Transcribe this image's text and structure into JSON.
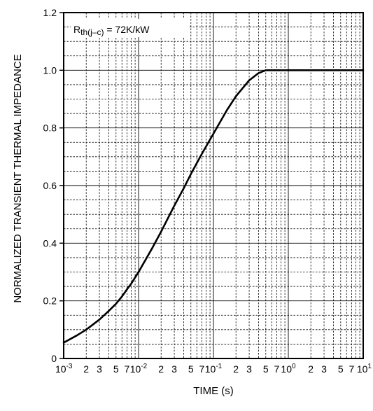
{
  "chart_data": {
    "type": "line",
    "title": "",
    "xlabel": "TIME (s)",
    "ylabel": "NORMALIZED TRANSIENT THERMAL IMPEDANCE",
    "x_scale": "log",
    "xlim": [
      0.001,
      10
    ],
    "ylim": [
      0,
      1.2
    ],
    "grid": true,
    "annotation": {
      "main": "R",
      "sub": "th(j–c)",
      "rest": " = 72K/kW"
    },
    "y_ticks": [
      {
        "value": 0,
        "label": "0"
      },
      {
        "value": 0.2,
        "label": "0.2"
      },
      {
        "value": 0.4,
        "label": "0.4"
      },
      {
        "value": 0.6,
        "label": "0.6"
      },
      {
        "value": 0.8,
        "label": "0.8"
      },
      {
        "value": 1.0,
        "label": "1.0"
      },
      {
        "value": 1.2,
        "label": "1.2"
      }
    ],
    "x_decade_labels": [
      {
        "value": 0.001,
        "base": "10",
        "exp": "-3"
      },
      {
        "value": 0.01,
        "base": "10",
        "exp": "-2"
      },
      {
        "value": 0.1,
        "base": "10",
        "exp": "-1"
      },
      {
        "value": 1,
        "base": "10",
        "exp": "0"
      },
      {
        "value": 10,
        "base": "10",
        "exp": "1"
      }
    ],
    "x_minor_labels": [
      "2",
      "3",
      "5",
      "7"
    ],
    "series": [
      {
        "x": [
          0.001,
          0.0015,
          0.002,
          0.003,
          0.004,
          0.005,
          0.006,
          0.007,
          0.008,
          0.01,
          0.015,
          0.02,
          0.03,
          0.04,
          0.05,
          0.07,
          0.1,
          0.15,
          0.2,
          0.3,
          0.4,
          0.5,
          0.6,
          0.7,
          0.8,
          1,
          2,
          5,
          10
        ],
        "y": [
          0.055,
          0.08,
          0.1,
          0.135,
          0.165,
          0.19,
          0.215,
          0.24,
          0.26,
          0.3,
          0.38,
          0.44,
          0.53,
          0.59,
          0.64,
          0.71,
          0.78,
          0.86,
          0.91,
          0.965,
          0.99,
          1.0,
          1.0,
          1.0,
          1.0,
          1.0,
          1.0,
          1.0,
          1.0
        ]
      }
    ]
  }
}
